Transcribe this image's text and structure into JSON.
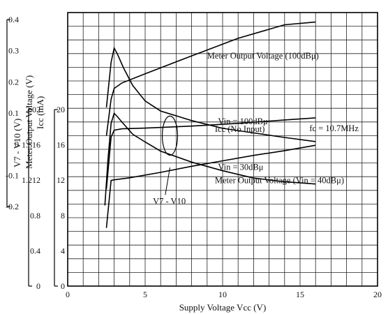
{
  "chart_data": {
    "type": "line",
    "xlabel": "Supply Voltage  Vcc  (V)",
    "xlim": [
      0,
      20
    ],
    "x_ticks": [
      "0",
      "5",
      "10",
      "15",
      "20"
    ],
    "grid": true,
    "y_axes": [
      {
        "id": "v7v10",
        "label": "V7 - V10  (V)",
        "ylim": [
          -0.2,
          0.4
        ],
        "ticks": [
          "0.4",
          "0.3",
          "0.2",
          "0.1",
          "0",
          "-0.1",
          "-0.2"
        ]
      },
      {
        "id": "meter",
        "label": "Meter Output Voltage (V)",
        "ylim": [
          0,
          2.02
        ],
        "ticks": [
          "2.02",
          "1.616",
          "1.212",
          "0.8",
          "0.4",
          "0"
        ]
      },
      {
        "id": "icc",
        "label": "Icc  (mA)",
        "ylim": [
          0,
          20
        ],
        "ticks": [
          "20",
          "16",
          "12",
          "8",
          "4",
          "0"
        ]
      }
    ],
    "series": [
      {
        "name": "V7 - V10  (Vin = 100dBμ)",
        "axis": "v7v10",
        "x": [
          2.5,
          2.8,
          3.0,
          3.2,
          3.6,
          4.2,
          5.0,
          6.0,
          8.0,
          10.0,
          12.0,
          14.0,
          16.0
        ],
        "y": [
          0.192,
          0.291,
          0.322,
          0.31,
          0.279,
          0.24,
          0.206,
          0.184,
          0.163,
          0.146,
          0.136,
          0.126,
          0.117
        ]
      },
      {
        "name": "V7 - V10  (Vin = 30dBμ)",
        "axis": "v7v10",
        "x": [
          2.4,
          2.6,
          2.8,
          3.0,
          3.2,
          3.6,
          4.2,
          5.0,
          6.0,
          8.0,
          10.0,
          12.0,
          14.0,
          16.0
        ],
        "y": [
          -0.023,
          0.077,
          0.157,
          0.179,
          0.172,
          0.156,
          0.133,
          0.116,
          0.096,
          0.072,
          0.053,
          0.037,
          0.029,
          0.024
        ]
      },
      {
        "name": "Meter Output Voltage (100dBμ)",
        "axis": "meter",
        "x": [
          2.5,
          2.8,
          3.0,
          3.5,
          5.0,
          8.0,
          11.0,
          14.0,
          16.0
        ],
        "y": [
          1.11,
          1.38,
          1.46,
          1.5,
          1.568,
          1.7,
          1.83,
          1.93,
          1.95
        ]
      },
      {
        "name": "Icc (No Input)",
        "axis": "icc",
        "x": [
          2.5,
          2.8,
          3.0,
          3.5,
          5.0,
          8.0,
          11.0,
          14.0,
          16.0
        ],
        "y": [
          7.1,
          10.9,
          11.4,
          11.5,
          11.55,
          11.7,
          11.9,
          12.15,
          12.3
        ]
      },
      {
        "name": "Meter Output Voltage (Vin = 40dBμ)",
        "axis": "meter",
        "x": [
          2.5,
          2.8,
          3.0,
          4.0,
          6.0,
          8.0,
          10.0,
          12.0,
          14.0,
          16.0
        ],
        "y": [
          0.43,
          0.78,
          0.785,
          0.8,
          0.84,
          0.885,
          0.925,
          0.965,
          1.0,
          1.04
        ]
      }
    ],
    "annotations": [
      {
        "text": "Vin = 100dBμ",
        "anchor_x": 9.7,
        "anchor_y": 0.155
      },
      {
        "text": "Vin = 30dBμ",
        "anchor_x": 9.7,
        "anchor_y": 0.055
      },
      {
        "text": "V7 - V10",
        "anchor_x": 5.5,
        "anchor_y": -0.02
      },
      {
        "text": "fc = 10.7MHz",
        "anchor_x": 15.6,
        "anchor_y": 0.14
      },
      {
        "text": "Meter Output Voltage (100dBμ)",
        "anchor_x": 9.0,
        "anchor_y": 1.68
      },
      {
        "text": "Icc (No Input)",
        "anchor_x": 9.5,
        "anchor_y": 1.14
      },
      {
        "text": "Meter Output Voltage (Vin = 40dBμ)",
        "anchor_x": 9.5,
        "anchor_y": 0.76
      }
    ]
  }
}
